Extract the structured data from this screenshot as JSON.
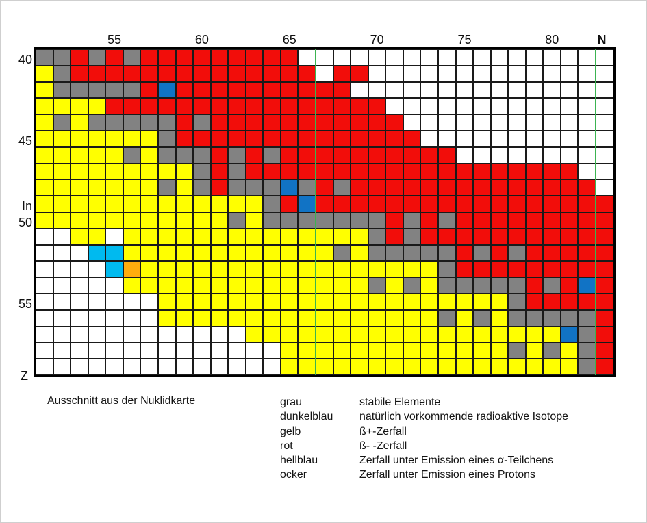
{
  "page": {
    "caption": "Ausschnitt aus der Nuklidkarte"
  },
  "axes": {
    "x_title": "N",
    "y_title": "Z",
    "x_ticks": [
      {
        "label": "55",
        "n": 55
      },
      {
        "label": "60",
        "n": 60
      },
      {
        "label": "65",
        "n": 65
      },
      {
        "label": "70",
        "n": 70
      },
      {
        "label": "75",
        "n": 75
      },
      {
        "label": "80",
        "n": 80
      }
    ],
    "y_ticks": [
      {
        "label": "40",
        "z": 40
      },
      {
        "label": "45",
        "z": 45
      },
      {
        "label": "In",
        "z": 49
      },
      {
        "label": "50",
        "z": 50
      },
      {
        "label": "55",
        "z": 55
      }
    ]
  },
  "legend": [
    {
      "name": "grau",
      "desc": "stabile Elemente"
    },
    {
      "name": "dunkelblau",
      "desc": "natürlich vorkommende radioaktive Isotope"
    },
    {
      "name": "gelb",
      "desc": "ß+-Zerfall"
    },
    {
      "name": "rot",
      "desc": "ß- -Zerfall"
    },
    {
      "name": "hellblau",
      "desc": "Zerfall unter Emission eines α-Teilchens"
    },
    {
      "name": "ocker",
      "desc": "Zerfall unter Emission eines Protons"
    }
  ],
  "colors": {
    "grid_line": "#1a1a1a",
    "outer_border": "#000000",
    "marker_line": "#3bb351",
    "codes": {
      "G": "#828282",
      "R": "#f20d0a",
      "Y": "#ffff00",
      "B": "#1173c5",
      "H": "#00baef",
      "O": "#ffad0d",
      "W": "#ffffff"
    }
  },
  "chart_data": {
    "type": "heatmap",
    "title": "Ausschnitt aus der Nuklidkarte",
    "x_axis": {
      "label": "N",
      "min": 51,
      "max": 83
    },
    "y_axis": {
      "label": "Z",
      "min": 40,
      "max": 59
    },
    "code_meanings": {
      "G": "grau: stabile Elemente",
      "B": "dunkelblau: natürlich vorkommende radioaktive Isotope",
      "Y": "gelb: ß+-Zerfall",
      "R": "rot: ß- -Zerfall",
      "H": "hellblau: Zerfall unter Emission eines α-Teilchens",
      "O": "ocker: Zerfall unter Emission eines Protons"
    },
    "green_marker_lines_after_n": [
      66,
      82
    ],
    "rows": [
      {
        "z": 40,
        "cells": "GGRGRGRRRRRRRRRWWWWWWWWWWWWWWWWWW"
      },
      {
        "z": 41,
        "cells": "YGRRRRRRRRRRRRRRWRRWWWWWWWWWWWWWW"
      },
      {
        "z": 42,
        "cells": "YGGGGGRBRRRRRRRRRRWWWWWWWWWWWWWWW"
      },
      {
        "z": 43,
        "cells": "YYYYRRRRRRRRRRRRRRRRWWWWWWWWWWWWW"
      },
      {
        "z": 44,
        "cells": "YGYGGGGGRGRRRRRRRRRRRWWWWWWWWWWWW"
      },
      {
        "z": 45,
        "cells": "YYYYYYYGRRRRRRRRRRRRRRWWWWWWWWWWW"
      },
      {
        "z": 46,
        "cells": "YYYYYGYGGGRGRGRRRRRRRRRRWWWWWWWWW"
      },
      {
        "z": 47,
        "cells": "YYYYYYYYYGRGRRRRRRRRRRRRRRRRRRRWW"
      },
      {
        "z": 48,
        "cells": "YYYYYYYGYGRGGGBGRGRRRRRRRRRRRRRRW"
      },
      {
        "z": 49,
        "cells": "YYYYYYYYYYYYYGRBRRRRRRRRRRRRRRRRR"
      },
      {
        "z": 50,
        "cells": "YYYYYYYYYYYGYGGGGGGGRGRGRRRRRRRRR"
      },
      {
        "z": 51,
        "cells": "WWYYWYYYYYYYYYYYYYYGRGRRRRRRRRRRR"
      },
      {
        "z": 52,
        "cells": "WWWHHYYYYYYYYYYYYGYGGGGGRGRGRRRRR"
      },
      {
        "z": 53,
        "cells": "WWWWHOYYYYYYYYYYYYYYYYYGRRRRRRRRR"
      },
      {
        "z": 54,
        "cells": "WWWWWYYYYYYYYYYYYYYGYGYGGGGGRGRBR"
      },
      {
        "z": 55,
        "cells": "WWWWWWWYYYYYYYYYYYYYYYYYYYYGRRRRR"
      },
      {
        "z": 56,
        "cells": "WWWWWWWYYYYYYYYYYYYYYYYGYGYGGGGGR"
      },
      {
        "z": 57,
        "cells": "WWWWWWWWWWWWYYYYYYYYYYYYYYYYYYBGR"
      },
      {
        "z": 58,
        "cells": "WWWWWWWWWWWWWWYYYYYYYYYYYYYGYGYGR"
      },
      {
        "z": 59,
        "cells": "WWWWWWWWWWWWWWYYYYYYYYYYYYYYYYYGR"
      }
    ]
  }
}
